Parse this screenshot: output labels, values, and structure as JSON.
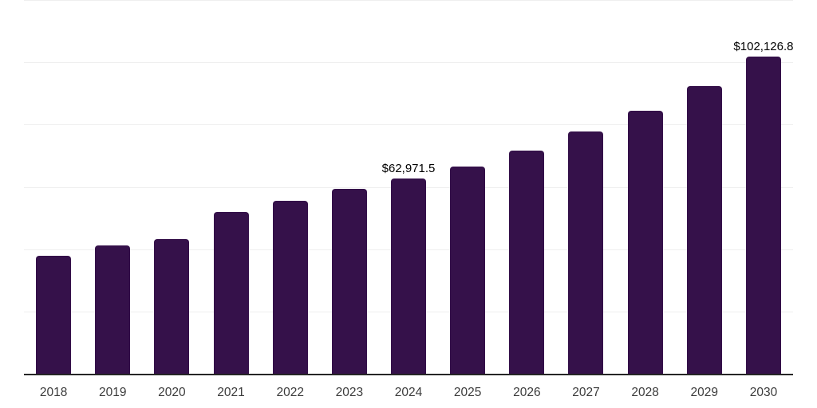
{
  "chart_data": {
    "type": "bar",
    "title": "",
    "xlabel": "",
    "ylabel": "",
    "categories": [
      "2018",
      "2019",
      "2020",
      "2021",
      "2022",
      "2023",
      "2024",
      "2025",
      "2026",
      "2027",
      "2028",
      "2029",
      "2030"
    ],
    "values": [
      38200,
      41350,
      43500,
      52250,
      55850,
      59700,
      62971.5,
      66850,
      71800,
      78050,
      84800,
      92550,
      102126.8
    ],
    "annotations": [
      {
        "index": 6,
        "text": "$62,971.5"
      },
      {
        "index": 12,
        "text": "$102,126.8"
      }
    ],
    "ylim": [
      0,
      120000
    ],
    "gridline_step": 20000,
    "grid": true,
    "legend_position": "none",
    "colors": {
      "bar": "#35114A",
      "axis_line": "#262626",
      "gridline": "#EFEFEF",
      "tick_label": "#3C3C3C",
      "data_label": "#000000",
      "background": "#FFFFFF"
    }
  }
}
